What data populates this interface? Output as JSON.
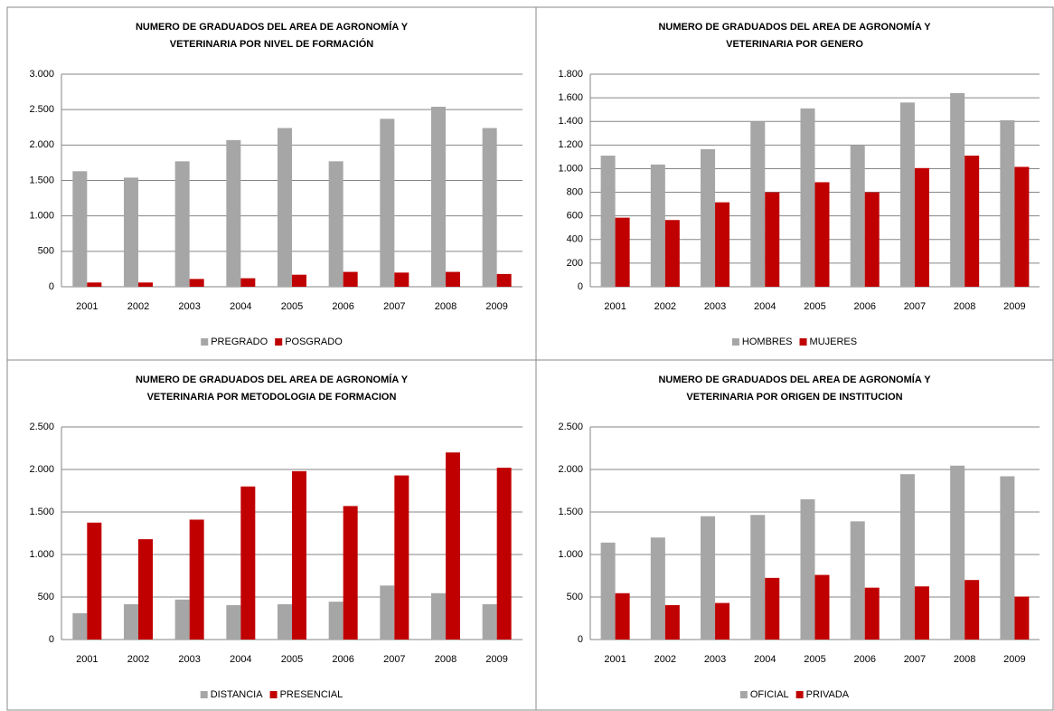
{
  "chart_data": [
    {
      "type": "bar",
      "title": [
        "NUMERO DE GRADUADOS  DEL AREA DE AGRONOMÍA Y",
        "VETERINARIA POR NIVEL DE FORMACIÓN"
      ],
      "categories": [
        "2001",
        "2002",
        "2003",
        "2004",
        "2005",
        "2006",
        "2007",
        "2008",
        "2009"
      ],
      "series": [
        {
          "name": "PREGRADO",
          "color": "#a6a6a6",
          "values": [
            1630,
            1540,
            1770,
            2070,
            2240,
            1770,
            2370,
            2540,
            2240
          ]
        },
        {
          "name": "POSGRADO",
          "color": "#c00000",
          "values": [
            60,
            60,
            110,
            120,
            170,
            210,
            200,
            210,
            180
          ]
        }
      ],
      "ylim": [
        0,
        3000
      ],
      "yticks": [
        0,
        500,
        {
          "value": 1000,
          "label": "1.000"
        },
        {
          "value": 1500,
          "label": "1.500"
        },
        {
          "value": 2000,
          "label": "2.000"
        },
        {
          "value": 2500,
          "label": "2.500"
        },
        {
          "value": 3000,
          "label": "3.000"
        }
      ],
      "grid": true,
      "legend": "bottom"
    },
    {
      "type": "bar",
      "title": [
        "NUMERO DE GRADUADOS  DEL AREA DE AGRONOMÍA Y",
        "VETERINARIA POR GENERO"
      ],
      "categories": [
        "2001",
        "2002",
        "2003",
        "2004",
        "2005",
        "2006",
        "2007",
        "2008",
        "2009"
      ],
      "series": [
        {
          "name": "HOMBRES",
          "color": "#a6a6a6",
          "values": [
            1110,
            1035,
            1165,
            1400,
            1510,
            1200,
            1560,
            1640,
            1410
          ]
        },
        {
          "name": "MUJERES",
          "color": "#c00000",
          "values": [
            585,
            565,
            715,
            800,
            885,
            800,
            1005,
            1110,
            1015
          ]
        }
      ],
      "ylim": [
        0,
        1800
      ],
      "yticks": [
        0,
        200,
        400,
        600,
        800,
        {
          "value": 1000,
          "label": "1.000"
        },
        {
          "value": 1200,
          "label": "1.200"
        },
        {
          "value": 1400,
          "label": "1.400"
        },
        {
          "value": 1600,
          "label": "1.600"
        },
        {
          "value": 1800,
          "label": "1.800"
        }
      ],
      "grid": true,
      "legend": "bottom"
    },
    {
      "type": "bar",
      "title": [
        "NUMERO DE GRADUADOS  DEL AREA DE AGRONOMÍA Y",
        "VETERINARIA POR METODOLOGIA  DE FORMACION"
      ],
      "categories": [
        "2001",
        "2002",
        "2003",
        "2004",
        "2005",
        "2006",
        "2007",
        "2008",
        "2009"
      ],
      "series": [
        {
          "name": "DISTANCIA",
          "color": "#a6a6a6",
          "values": [
            310,
            415,
            470,
            405,
            415,
            445,
            635,
            545,
            415
          ]
        },
        {
          "name": "PRESENCIAL",
          "color": "#c00000",
          "values": [
            1375,
            1180,
            1410,
            1800,
            1980,
            1570,
            1930,
            2200,
            2020
          ]
        }
      ],
      "ylim": [
        0,
        2500
      ],
      "yticks": [
        0,
        500,
        {
          "value": 1000,
          "label": "1.000"
        },
        {
          "value": 1500,
          "label": "1.500"
        },
        {
          "value": 2000,
          "label": "2.000"
        },
        {
          "value": 2500,
          "label": "2.500"
        }
      ],
      "grid": true,
      "legend": "bottom"
    },
    {
      "type": "bar",
      "title": [
        "NUMERO DE GRADUADOS  DEL AREA DE AGRONOMÍA Y",
        "VETERINARIA POR ORIGEN DE INSTITUCION"
      ],
      "categories": [
        "2001",
        "2002",
        "2003",
        "2004",
        "2005",
        "2006",
        "2007",
        "2008",
        "2009"
      ],
      "series": [
        {
          "name": "OFICIAL",
          "color": "#a6a6a6",
          "values": [
            1140,
            1200,
            1450,
            1465,
            1650,
            1390,
            1945,
            2045,
            1920
          ]
        },
        {
          "name": "PRIVADA",
          "color": "#c00000",
          "values": [
            545,
            405,
            430,
            725,
            760,
            610,
            625,
            700,
            505
          ]
        }
      ],
      "ylim": [
        0,
        2500
      ],
      "yticks": [
        0,
        500,
        {
          "value": 1000,
          "label": "1.000"
        },
        {
          "value": 1500,
          "label": "1.500"
        },
        {
          "value": 2000,
          "label": "2.000"
        },
        {
          "value": 2500,
          "label": "2.500"
        }
      ],
      "grid": true,
      "legend": "bottom"
    }
  ]
}
